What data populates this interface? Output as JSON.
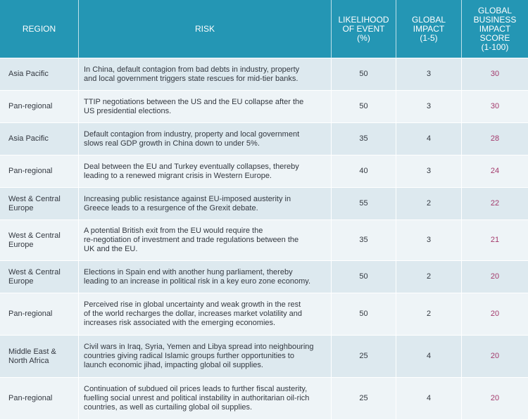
{
  "headers": {
    "region": "REGION",
    "risk": "RISK",
    "likelihood": [
      "LIKELIHOOD",
      "OF EVENT",
      "(%)"
    ],
    "impact": [
      "GLOBAL",
      "IMPACT",
      "(1-5)"
    ],
    "score": [
      "GLOBAL",
      "BUSINESS",
      "IMPACT",
      "SCORE",
      "(1-100)"
    ]
  },
  "rows": [
    {
      "region": [
        "Asia Pacific"
      ],
      "risk": [
        "In China, default contagion from bad debts in industry, property",
        "and local government triggers state rescues for mid-tier banks."
      ],
      "likelihood": "50",
      "impact": "3",
      "score": "30"
    },
    {
      "region": [
        "Pan-regional"
      ],
      "risk": [
        "TTIP negotiations between the US and the EU collapse after the",
        "US presidential elections."
      ],
      "likelihood": "50",
      "impact": "3",
      "score": "30"
    },
    {
      "region": [
        "Asia Pacific"
      ],
      "risk": [
        "Default contagion from industry, property and local government",
        "slows real GDP growth in China down to under 5%."
      ],
      "likelihood": "35",
      "impact": "4",
      "score": "28"
    },
    {
      "region": [
        "Pan-regional"
      ],
      "risk": [
        "Deal between the EU and Turkey eventually collapses, thereby",
        "leading to a renewed migrant crisis in Western Europe."
      ],
      "likelihood": "40",
      "impact": "3",
      "score": "24"
    },
    {
      "region": [
        "West & Central",
        "Europe"
      ],
      "risk": [
        "Increasing public resistance against EU-imposed austerity in",
        "Greece leads to a resurgence of the Grexit debate."
      ],
      "likelihood": "55",
      "impact": "2",
      "score": "22"
    },
    {
      "region": [
        "West & Central",
        "Europe"
      ],
      "risk": [
        "A potential British exit from the EU would require the",
        "re-negotiation of investment and trade regulations between the",
        "UK and the EU."
      ],
      "likelihood": "35",
      "impact": "3",
      "score": "21"
    },
    {
      "region": [
        "West & Central",
        "Europe"
      ],
      "risk": [
        "Elections in Spain end with another hung parliament, thereby",
        "leading to an increase in political risk in a key euro zone economy."
      ],
      "likelihood": "50",
      "impact": "2",
      "score": "20"
    },
    {
      "region": [
        "Pan-regional"
      ],
      "risk": [
        "Perceived rise in global uncertainty and weak growth in the rest",
        "of the world recharges the dollar, increases market volatility and",
        "increases risk associated with the emerging economies."
      ],
      "likelihood": "50",
      "impact": "2",
      "score": "20"
    },
    {
      "region": [
        "Middle East &",
        "North Africa"
      ],
      "risk": [
        "Civil wars in Iraq, Syria, Yemen and Libya spread into neighbouring",
        "countries giving radical Islamic groups further opportunities to",
        "launch economic jihad, impacting global oil supplies."
      ],
      "likelihood": "25",
      "impact": "4",
      "score": "20"
    },
    {
      "region": [
        "Pan-regional"
      ],
      "risk": [
        "Continuation of subdued oil prices leads to further fiscal austerity,",
        "fuelling social unrest and political instability in authoritarian oil-rich",
        "countries, as well as curtailing global oil supplies."
      ],
      "likelihood": "25",
      "impact": "4",
      "score": "20"
    }
  ],
  "colors": {
    "header_bg": "#2496b4",
    "row_odd": "#dde9ef",
    "row_even": "#eef4f7",
    "score_text": "#a3396b"
  }
}
